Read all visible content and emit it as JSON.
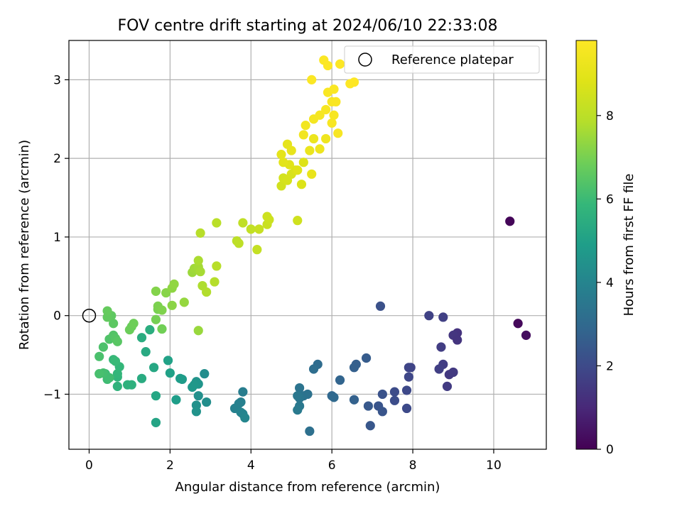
{
  "chart_data": {
    "type": "scatter",
    "title": "FOV centre drift starting at 2024/06/10 22:33:08",
    "xlabel": "Angular distance from reference (arcmin)",
    "ylabel": "Rotation from reference (arcmin)",
    "xlim": [
      -0.5,
      11.3
    ],
    "ylim": [
      -1.7,
      3.5
    ],
    "xticks": [
      0,
      2,
      4,
      6,
      8,
      10
    ],
    "yticks": [
      -1,
      0,
      1,
      2,
      3
    ],
    "grid": true,
    "legend": {
      "placement": "top-right",
      "entries": [
        {
          "label": "Reference platepar",
          "marker": "open-circle"
        }
      ]
    },
    "reference_point": {
      "x": 0,
      "y": 0
    },
    "colorbar": {
      "label": "Hours from first FF file",
      "colormap": "viridis",
      "range": [
        0,
        9.8
      ],
      "ticks": [
        0,
        2,
        4,
        6,
        8
      ]
    },
    "points": [
      {
        "x": 10.4,
        "y": 1.2,
        "h": 0.1
      },
      {
        "x": 10.6,
        "y": -0.1,
        "h": 0.2
      },
      {
        "x": 10.8,
        "y": -0.25,
        "h": 0.3
      },
      {
        "x": 9.1,
        "y": -0.22,
        "h": 1.3
      },
      {
        "x": 9.0,
        "y": -0.25,
        "h": 1.4
      },
      {
        "x": 9.1,
        "y": -0.31,
        "h": 1.35
      },
      {
        "x": 8.9,
        "y": -0.75,
        "h": 1.45
      },
      {
        "x": 9.0,
        "y": -0.72,
        "h": 1.5
      },
      {
        "x": 8.85,
        "y": -0.9,
        "h": 1.55
      },
      {
        "x": 8.75,
        "y": -0.62,
        "h": 1.6
      },
      {
        "x": 8.65,
        "y": -0.68,
        "h": 1.65
      },
      {
        "x": 8.7,
        "y": -0.4,
        "h": 1.6
      },
      {
        "x": 8.4,
        "y": 0.0,
        "h": 1.75
      },
      {
        "x": 8.75,
        "y": -0.02,
        "h": 1.7
      },
      {
        "x": 7.95,
        "y": -0.66,
        "h": 1.8
      },
      {
        "x": 7.9,
        "y": -0.66,
        "h": 1.85
      },
      {
        "x": 7.9,
        "y": -0.78,
        "h": 1.9
      },
      {
        "x": 7.85,
        "y": -0.95,
        "h": 1.95
      },
      {
        "x": 7.85,
        "y": -1.18,
        "h": 2.0
      },
      {
        "x": 7.55,
        "y": -0.97,
        "h": 2.05
      },
      {
        "x": 7.55,
        "y": -1.08,
        "h": 2.1
      },
      {
        "x": 7.2,
        "y": 0.12,
        "h": 2.2
      },
      {
        "x": 7.25,
        "y": -1.0,
        "h": 2.25
      },
      {
        "x": 7.15,
        "y": -1.15,
        "h": 2.3
      },
      {
        "x": 7.25,
        "y": -1.22,
        "h": 2.35
      },
      {
        "x": 6.95,
        "y": -1.4,
        "h": 2.4
      },
      {
        "x": 6.9,
        "y": -1.15,
        "h": 2.45
      },
      {
        "x": 6.85,
        "y": -0.54,
        "h": 2.55
      },
      {
        "x": 6.6,
        "y": -0.62,
        "h": 2.65
      },
      {
        "x": 6.55,
        "y": -0.66,
        "h": 2.7
      },
      {
        "x": 6.55,
        "y": -1.07,
        "h": 2.75
      },
      {
        "x": 6.2,
        "y": -0.82,
        "h": 2.85
      },
      {
        "x": 6.0,
        "y": -1.02,
        "h": 2.95
      },
      {
        "x": 6.05,
        "y": -1.04,
        "h": 3.0
      },
      {
        "x": 5.65,
        "y": -0.62,
        "h": 3.1
      },
      {
        "x": 5.55,
        "y": -0.68,
        "h": 3.15
      },
      {
        "x": 5.45,
        "y": -1.47,
        "h": 3.25
      },
      {
        "x": 5.4,
        "y": -1.0,
        "h": 3.3
      },
      {
        "x": 5.3,
        "y": -1.02,
        "h": 3.35
      },
      {
        "x": 5.2,
        "y": -0.92,
        "h": 3.4
      },
      {
        "x": 5.2,
        "y": -1.05,
        "h": 3.45
      },
      {
        "x": 5.15,
        "y": -1.02,
        "h": 3.5
      },
      {
        "x": 5.2,
        "y": -1.15,
        "h": 3.55
      },
      {
        "x": 5.15,
        "y": -1.2,
        "h": 3.6
      },
      {
        "x": 3.8,
        "y": -0.97,
        "h": 3.75
      },
      {
        "x": 3.75,
        "y": -1.1,
        "h": 3.8
      },
      {
        "x": 3.7,
        "y": -1.12,
        "h": 3.85
      },
      {
        "x": 3.6,
        "y": -1.18,
        "h": 3.9
      },
      {
        "x": 3.75,
        "y": -1.23,
        "h": 3.95
      },
      {
        "x": 3.8,
        "y": -1.25,
        "h": 4.0
      },
      {
        "x": 3.85,
        "y": -1.3,
        "h": 4.05
      },
      {
        "x": 2.85,
        "y": -0.74,
        "h": 4.3
      },
      {
        "x": 2.9,
        "y": -1.1,
        "h": 4.35
      },
      {
        "x": 2.7,
        "y": -1.02,
        "h": 4.4
      },
      {
        "x": 2.65,
        "y": -1.14,
        "h": 4.45
      },
      {
        "x": 2.65,
        "y": -1.22,
        "h": 4.5
      },
      {
        "x": 2.65,
        "y": -0.84,
        "h": 4.55
      },
      {
        "x": 2.7,
        "y": -0.87,
        "h": 4.6
      },
      {
        "x": 2.6,
        "y": -0.88,
        "h": 4.65
      },
      {
        "x": 2.55,
        "y": -0.91,
        "h": 4.7
      },
      {
        "x": 2.3,
        "y": -0.81,
        "h": 4.8
      },
      {
        "x": 2.25,
        "y": -0.8,
        "h": 4.85
      },
      {
        "x": 2.15,
        "y": -1.07,
        "h": 4.9
      },
      {
        "x": 2.0,
        "y": -0.73,
        "h": 5.0
      },
      {
        "x": 1.95,
        "y": -0.57,
        "h": 5.05
      },
      {
        "x": 1.65,
        "y": -1.36,
        "h": 5.15
      },
      {
        "x": 1.65,
        "y": -1.02,
        "h": 5.2
      },
      {
        "x": 1.6,
        "y": -0.66,
        "h": 5.25
      },
      {
        "x": 1.4,
        "y": -0.46,
        "h": 5.35
      },
      {
        "x": 1.3,
        "y": -0.8,
        "h": 5.4
      },
      {
        "x": 1.3,
        "y": -0.28,
        "h": 5.45
      },
      {
        "x": 1.5,
        "y": -0.18,
        "h": 5.5
      },
      {
        "x": 1.05,
        "y": -0.88,
        "h": 5.6
      },
      {
        "x": 0.95,
        "y": -0.88,
        "h": 5.65
      },
      {
        "x": 0.7,
        "y": -0.9,
        "h": 5.7
      },
      {
        "x": 0.7,
        "y": -0.78,
        "h": 5.75
      },
      {
        "x": 0.7,
        "y": -0.74,
        "h": 5.8
      },
      {
        "x": 0.75,
        "y": -0.65,
        "h": 5.85
      },
      {
        "x": 0.6,
        "y": -0.56,
        "h": 5.9
      },
      {
        "x": 0.65,
        "y": -0.58,
        "h": 5.95
      },
      {
        "x": 0.4,
        "y": -0.74,
        "h": 6.0
      },
      {
        "x": 0.45,
        "y": -0.81,
        "h": 6.05
      },
      {
        "x": 0.5,
        "y": -0.79,
        "h": 6.1
      },
      {
        "x": 0.35,
        "y": -0.73,
        "h": 6.15
      },
      {
        "x": 0.25,
        "y": -0.74,
        "h": 6.2
      },
      {
        "x": 0.25,
        "y": -0.52,
        "h": 6.25
      },
      {
        "x": 0.35,
        "y": -0.4,
        "h": 6.3
      },
      {
        "x": 0.5,
        "y": -0.3,
        "h": 6.35
      },
      {
        "x": 0.6,
        "y": -0.25,
        "h": 6.4
      },
      {
        "x": 0.65,
        "y": -0.29,
        "h": 6.45
      },
      {
        "x": 0.7,
        "y": -0.33,
        "h": 6.5
      },
      {
        "x": 0.6,
        "y": -0.1,
        "h": 6.55
      },
      {
        "x": 0.55,
        "y": 0.0,
        "h": 6.6
      },
      {
        "x": 0.45,
        "y": -0.02,
        "h": 6.65
      },
      {
        "x": 0.45,
        "y": 0.06,
        "h": 6.7
      },
      {
        "x": 1.05,
        "y": -0.14,
        "h": 6.75
      },
      {
        "x": 1.0,
        "y": -0.18,
        "h": 6.8
      },
      {
        "x": 1.1,
        "y": -0.1,
        "h": 6.85
      },
      {
        "x": 1.8,
        "y": -0.17,
        "h": 6.9
      },
      {
        "x": 1.65,
        "y": -0.05,
        "h": 6.95
      },
      {
        "x": 1.7,
        "y": 0.08,
        "h": 7.0
      },
      {
        "x": 1.7,
        "y": 0.12,
        "h": 7.05
      },
      {
        "x": 1.8,
        "y": 0.07,
        "h": 7.1
      },
      {
        "x": 1.65,
        "y": 0.31,
        "h": 7.15
      },
      {
        "x": 1.9,
        "y": 0.29,
        "h": 7.2
      },
      {
        "x": 2.05,
        "y": 0.13,
        "h": 7.25
      },
      {
        "x": 2.05,
        "y": 0.35,
        "h": 7.3
      },
      {
        "x": 2.1,
        "y": 0.4,
        "h": 7.35
      },
      {
        "x": 2.35,
        "y": 0.17,
        "h": 7.4
      },
      {
        "x": 2.7,
        "y": -0.19,
        "h": 7.45
      },
      {
        "x": 2.55,
        "y": 0.55,
        "h": 7.5
      },
      {
        "x": 2.6,
        "y": 0.6,
        "h": 7.55
      },
      {
        "x": 2.7,
        "y": 0.62,
        "h": 7.6
      },
      {
        "x": 2.75,
        "y": 0.56,
        "h": 7.65
      },
      {
        "x": 2.7,
        "y": 0.7,
        "h": 7.7
      },
      {
        "x": 2.8,
        "y": 0.38,
        "h": 7.75
      },
      {
        "x": 2.9,
        "y": 0.3,
        "h": 7.8
      },
      {
        "x": 3.1,
        "y": 0.43,
        "h": 7.85
      },
      {
        "x": 3.15,
        "y": 0.63,
        "h": 7.9
      },
      {
        "x": 2.75,
        "y": 1.05,
        "h": 7.9
      },
      {
        "x": 3.15,
        "y": 1.18,
        "h": 7.95
      },
      {
        "x": 3.65,
        "y": 0.95,
        "h": 8.0
      },
      {
        "x": 3.7,
        "y": 0.92,
        "h": 8.05
      },
      {
        "x": 3.8,
        "y": 1.18,
        "h": 8.1
      },
      {
        "x": 4.0,
        "y": 1.1,
        "h": 8.15
      },
      {
        "x": 4.15,
        "y": 0.84,
        "h": 8.2
      },
      {
        "x": 4.2,
        "y": 1.1,
        "h": 8.25
      },
      {
        "x": 4.4,
        "y": 1.16,
        "h": 8.3
      },
      {
        "x": 4.45,
        "y": 1.22,
        "h": 8.35
      },
      {
        "x": 4.4,
        "y": 1.26,
        "h": 8.4
      },
      {
        "x": 5.15,
        "y": 1.21,
        "h": 8.45
      },
      {
        "x": 4.75,
        "y": 1.65,
        "h": 8.5
      },
      {
        "x": 4.8,
        "y": 1.75,
        "h": 8.55
      },
      {
        "x": 4.9,
        "y": 1.72,
        "h": 8.6
      },
      {
        "x": 5.0,
        "y": 1.8,
        "h": 8.65
      },
      {
        "x": 5.1,
        "y": 1.85,
        "h": 8.7
      },
      {
        "x": 5.25,
        "y": 1.67,
        "h": 8.75
      },
      {
        "x": 5.3,
        "y": 1.95,
        "h": 8.8
      },
      {
        "x": 5.15,
        "y": 1.85,
        "h": 8.85
      },
      {
        "x": 4.95,
        "y": 1.92,
        "h": 8.9
      },
      {
        "x": 4.8,
        "y": 1.95,
        "h": 8.95
      },
      {
        "x": 4.75,
        "y": 2.05,
        "h": 9.0
      },
      {
        "x": 4.9,
        "y": 2.18,
        "h": 9.05
      },
      {
        "x": 5.0,
        "y": 2.1,
        "h": 9.1
      },
      {
        "x": 5.5,
        "y": 1.8,
        "h": 9.15
      },
      {
        "x": 5.45,
        "y": 2.1,
        "h": 9.2
      },
      {
        "x": 5.55,
        "y": 2.25,
        "h": 9.25
      },
      {
        "x": 5.7,
        "y": 2.12,
        "h": 9.3
      },
      {
        "x": 5.85,
        "y": 2.25,
        "h": 9.35
      },
      {
        "x": 5.3,
        "y": 2.3,
        "h": 9.4
      },
      {
        "x": 5.35,
        "y": 2.42,
        "h": 9.45
      },
      {
        "x": 5.55,
        "y": 2.5,
        "h": 9.5
      },
      {
        "x": 5.7,
        "y": 2.55,
        "h": 9.55
      },
      {
        "x": 5.85,
        "y": 2.62,
        "h": 9.6
      },
      {
        "x": 6.0,
        "y": 2.45,
        "h": 9.6
      },
      {
        "x": 6.05,
        "y": 2.55,
        "h": 9.6
      },
      {
        "x": 6.15,
        "y": 2.32,
        "h": 9.62
      },
      {
        "x": 6.0,
        "y": 2.72,
        "h": 9.64
      },
      {
        "x": 6.1,
        "y": 2.72,
        "h": 9.66
      },
      {
        "x": 5.9,
        "y": 2.84,
        "h": 9.68
      },
      {
        "x": 6.05,
        "y": 2.88,
        "h": 9.7
      },
      {
        "x": 5.5,
        "y": 3.0,
        "h": 9.72
      },
      {
        "x": 5.8,
        "y": 3.25,
        "h": 9.74
      },
      {
        "x": 5.9,
        "y": 3.18,
        "h": 9.76
      },
      {
        "x": 6.2,
        "y": 3.2,
        "h": 9.78
      },
      {
        "x": 6.45,
        "y": 2.95,
        "h": 9.8
      },
      {
        "x": 6.55,
        "y": 2.97,
        "h": 9.8
      }
    ]
  }
}
